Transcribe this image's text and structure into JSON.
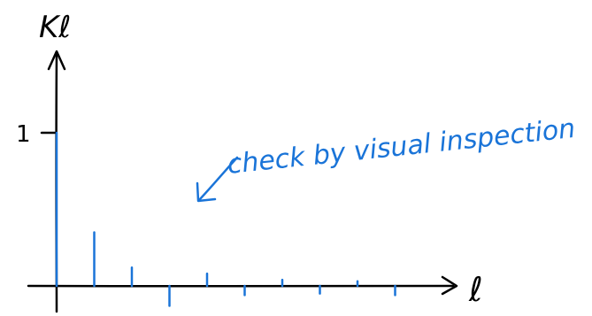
{
  "chart_data": {
    "type": "bar",
    "title": "",
    "xlabel": "ℓ",
    "ylabel": "Kℓ",
    "x": [
      0,
      1,
      2,
      3,
      4,
      5,
      6,
      7,
      8,
      9
    ],
    "values": [
      1,
      0.35,
      0.12,
      -0.13,
      0.08,
      -0.06,
      0.04,
      -0.05,
      0.03,
      -0.06
    ],
    "ytick_labels": [
      "1"
    ],
    "ytick_values": [
      1
    ],
    "ylim": [
      -0.2,
      1.4
    ],
    "grid": false,
    "legend": "none",
    "colors": {
      "axes": "#000000",
      "bars": "#1a74d8",
      "annotation": "#1a74d8"
    },
    "annotations": [
      {
        "text": "check by visual inspection",
        "arrow": true
      }
    ]
  }
}
